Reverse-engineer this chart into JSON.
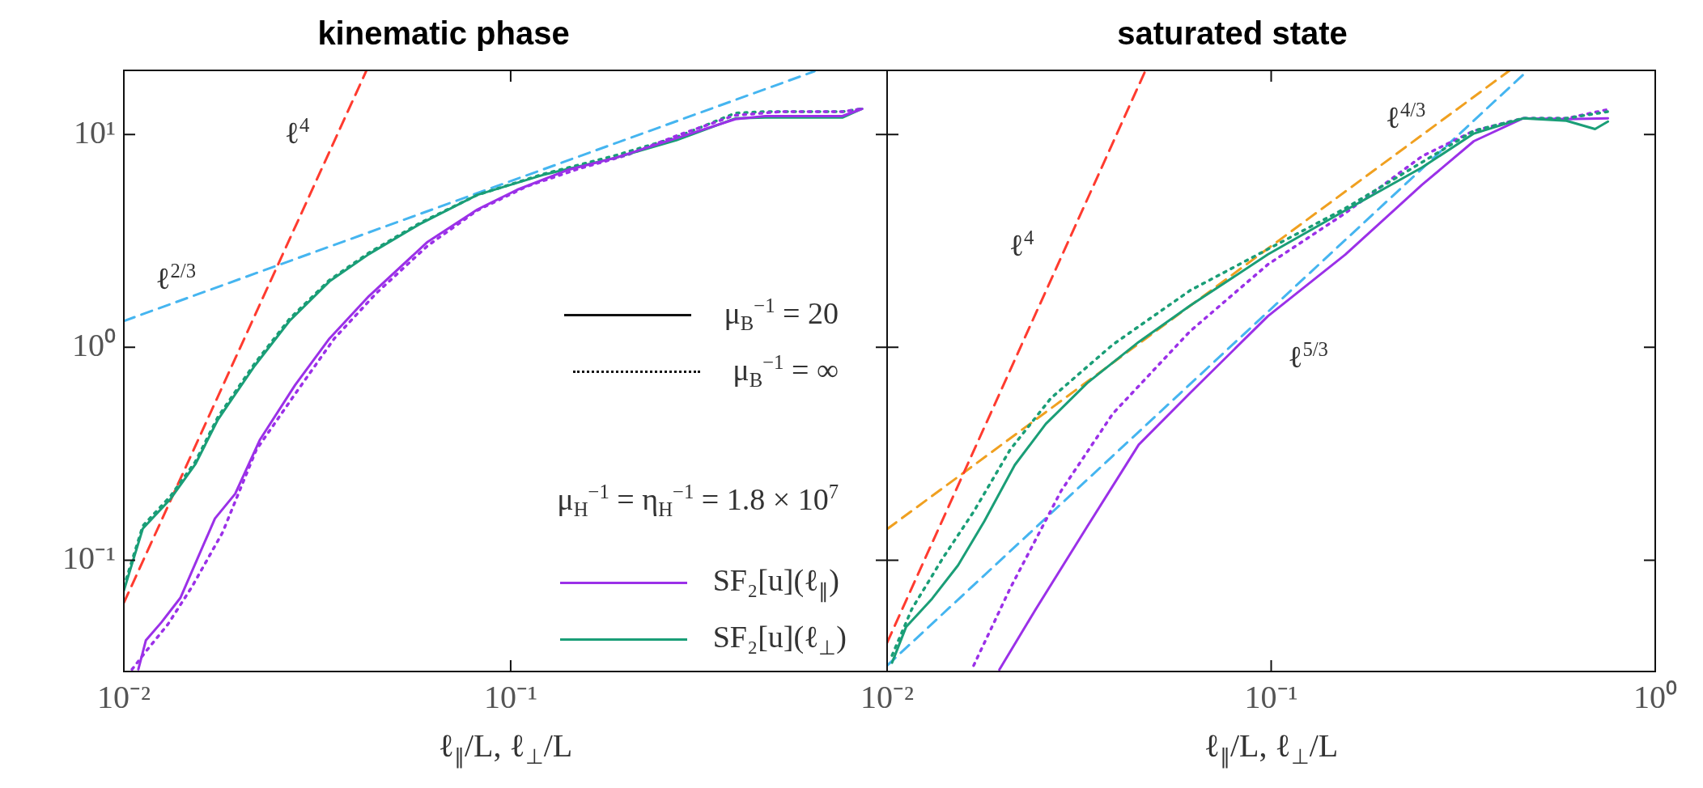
{
  "chart_data": [
    {
      "type": "line",
      "title": "kinematic phase",
      "xlabel": "ℓ$_{∥}$/L, ℓ$_{⊥}$/L",
      "log": "xy",
      "grid": false,
      "legend": "bottom right",
      "marker": "none",
      "xlim": [
        0.01,
        0.94
      ],
      "ylim": [
        0.03,
        20
      ],
      "xticks": [
        {
          "value": 0.01,
          "label": "10⁻²"
        },
        {
          "value": 0.1,
          "label": "10⁻¹"
        }
      ],
      "yticks": [
        {
          "value": 0.1,
          "label": "10⁻¹"
        },
        {
          "value": 1,
          "label": "10⁰"
        },
        {
          "value": 10,
          "label": "10¹"
        }
      ],
      "series": [
        {
          "name": "SF₂[u](ℓ$_{∥}$)",
          "color": "#9b30e8",
          "line_style": "solid",
          "x": [
            0.0109,
            0.0114,
            0.0125,
            0.014,
            0.0172,
            0.0194,
            0.0225,
            0.0277,
            0.034,
            0.043,
            0.061,
            0.082,
            0.104,
            0.14,
            0.188,
            0.268,
            0.381,
            0.455,
            0.72,
            0.81
          ],
          "values": [
            0.0307,
            0.042,
            0.051,
            0.0665,
            0.157,
            0.205,
            0.369,
            0.664,
            1.1,
            1.74,
            3.13,
            4.44,
            5.5,
            6.8,
            7.8,
            9.6,
            11.8,
            12.2,
            12.2,
            13.2
          ]
        },
        {
          "name": "SF₂[u](ℓ$_{⊥}$)",
          "color": "#1a9e77",
          "line_style": "solid",
          "x": [
            0.01,
            0.0112,
            0.0132,
            0.0153,
            0.0175,
            0.0218,
            0.0268,
            0.034,
            0.043,
            0.058,
            0.082,
            0.121,
            0.188,
            0.268,
            0.381,
            0.455,
            0.72,
            0.81
          ],
          "values": [
            0.072,
            0.141,
            0.194,
            0.282,
            0.457,
            0.82,
            1.33,
            2.04,
            2.74,
            3.78,
            5.2,
            6.45,
            7.8,
            9.4,
            11.9,
            12,
            12,
            13.2
          ]
        },
        {
          "color": "#9b30e8",
          "line_style": "dotted",
          "x": [
            0.0105,
            0.0115,
            0.013,
            0.015,
            0.018,
            0.022,
            0.028,
            0.035,
            0.045,
            0.061,
            0.082,
            0.11,
            0.15,
            0.2,
            0.27,
            0.38,
            0.5,
            0.72,
            0.81
          ],
          "values": [
            0.0307,
            0.038,
            0.05,
            0.075,
            0.135,
            0.33,
            0.62,
            1.1,
            1.8,
            3,
            4.4,
            5.7,
            6.9,
            8,
            9.9,
            12.3,
            12.8,
            12.8,
            13.2
          ]
        },
        {
          "color": "#1a9e77",
          "line_style": "dotted",
          "x": [
            0.01,
            0.0112,
            0.0132,
            0.0153,
            0.0175,
            0.0218,
            0.0268,
            0.034,
            0.043,
            0.058,
            0.082,
            0.121,
            0.188,
            0.268,
            0.381,
            0.455,
            0.72,
            0.81
          ],
          "values": [
            0.075,
            0.145,
            0.2,
            0.29,
            0.47,
            0.84,
            1.36,
            2.07,
            2.78,
            3.82,
            5.2,
            6.5,
            8,
            9.7,
            12.6,
            12.8,
            12.8,
            13.2
          ]
        },
        {
          "color": "#ff3b2f",
          "line_style": "dashed",
          "x": [
            0.01,
            0.0424
          ],
          "values": [
            0.063,
            20
          ]
        },
        {
          "color": "#45b5f0",
          "line_style": "dashed",
          "x": [
            0.01,
            0.61
          ],
          "values": [
            1.33,
            19.8
          ]
        }
      ],
      "annotations": [
        "μ$_{B}$$^{−1}$ = 20",
        "μ$_{B}$$^{−1}$ = ∞",
        "μ$_{H}$$^{−1}$ = η$_{H}$$^{−1}$ = 1.8 × 10$^{7}$",
        "ℓ$^{4}$",
        "ℓ$^{2/3}$"
      ]
    },
    {
      "type": "line",
      "title": "saturated state",
      "xlabel": "ℓ$_{∥}$/L, ℓ$_{⊥}$/L",
      "log": "xy",
      "grid": false,
      "marker": "none",
      "tick_labels": "x",
      "xlim": [
        0.01,
        1
      ],
      "ylim": [
        0.03,
        20
      ],
      "xticks": [
        {
          "value": 0.01,
          "label": "10⁻²"
        },
        {
          "value": 0.1,
          "label": "10⁻¹"
        },
        {
          "value": 1,
          "label": "10⁰"
        }
      ],
      "yticks": [
        0.1,
        1,
        10
      ],
      "series": [
        {
          "color": "#1a9e77",
          "line_style": "solid",
          "x": [
            0.0103,
            0.0112,
            0.0131,
            0.0153,
            0.0179,
            0.0215,
            0.0259,
            0.0332,
            0.0452,
            0.0615,
            0.098,
            0.156,
            0.247,
            0.337,
            0.452,
            0.587,
            0.697,
            0.753
          ],
          "values": [
            0.033,
            0.0485,
            0.066,
            0.0946,
            0.152,
            0.28,
            0.437,
            0.68,
            1.06,
            1.57,
            2.73,
            4.4,
            7,
            10.1,
            11.9,
            11.6,
            10.6,
            11.5
          ]
        },
        {
          "color": "#1a9e77",
          "line_style": "dotted",
          "x": [
            0.0103,
            0.0116,
            0.014,
            0.0168,
            0.0209,
            0.0267,
            0.0387,
            0.0615,
            0.098,
            0.156,
            0.247,
            0.337,
            0.452,
            0.587,
            0.753
          ],
          "values": [
            0.0357,
            0.059,
            0.103,
            0.169,
            0.33,
            0.577,
            1.03,
            1.85,
            2.89,
            4.5,
            7.4,
            10.4,
            11.9,
            11.9,
            12.8
          ]
        },
        {
          "color": "#9b30e8",
          "line_style": "solid",
          "x": [
            0.0196,
            0.0244,
            0.0332,
            0.0452,
            0.0615,
            0.098,
            0.156,
            0.247,
            0.337,
            0.452,
            0.587,
            0.753
          ],
          "values": [
            0.0306,
            0.059,
            0.144,
            0.349,
            0.61,
            1.4,
            2.73,
            5.8,
            9.3,
            11.9,
            11.8,
            11.9
          ]
        },
        {
          "color": "#9b30e8",
          "line_style": "dotted",
          "x": [
            0.0168,
            0.0209,
            0.0284,
            0.0387,
            0.0615,
            0.098,
            0.156,
            0.247,
            0.337,
            0.452,
            0.587,
            0.753
          ],
          "values": [
            0.032,
            0.0736,
            0.212,
            0.488,
            1.19,
            2.45,
            4.27,
            7.9,
            10.4,
            11.9,
            11.9,
            13.1
          ]
        },
        {
          "color": "#ff3b2f",
          "line_style": "dashed",
          "x": [
            0.01,
            0.0469
          ],
          "values": [
            0.041,
            19.7
          ]
        },
        {
          "color": "#f0a020",
          "line_style": "dashed",
          "x": [
            0.01,
            0.418
          ],
          "values": [
            0.14,
            20
          ]
        },
        {
          "color": "#45b5f0",
          "line_style": "dashed",
          "x": [
            0.01,
            0.466
          ],
          "values": [
            0.032,
            20
          ]
        }
      ],
      "annotations": [
        "ℓ$^{4}$",
        "ℓ$^{4/3}$",
        "ℓ$^{5/3}$"
      ]
    }
  ]
}
